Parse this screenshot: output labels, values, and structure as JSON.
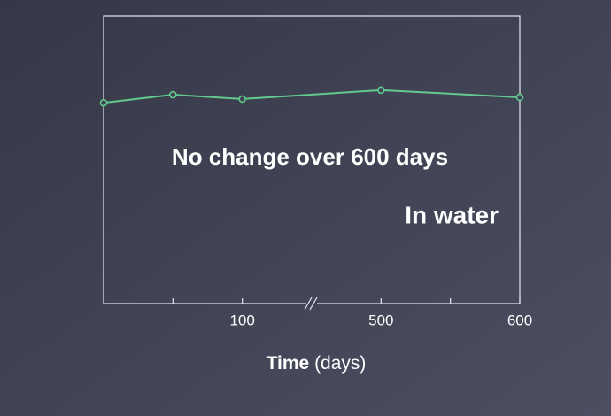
{
  "chart_data": {
    "type": "line",
    "x": [
      0,
      50,
      100,
      500,
      600
    ],
    "series": [
      {
        "name": "In water",
        "color": "#63c98e",
        "values": [
          69.8,
          72.6,
          71.1,
          74.2,
          71.7
        ]
      }
    ],
    "xlim": [
      0,
      600
    ],
    "xbreak": [
      150,
      450
    ],
    "xticks": [
      {
        "value": 50,
        "label": null
      },
      100,
      500,
      {
        "value": 550,
        "label": null
      },
      600
    ],
    "ylim": [
      0,
      100
    ],
    "annotations": [
      "No change over 600 days"
    ],
    "xlabel": "Time",
    "xlabel_unit": "(days)"
  }
}
